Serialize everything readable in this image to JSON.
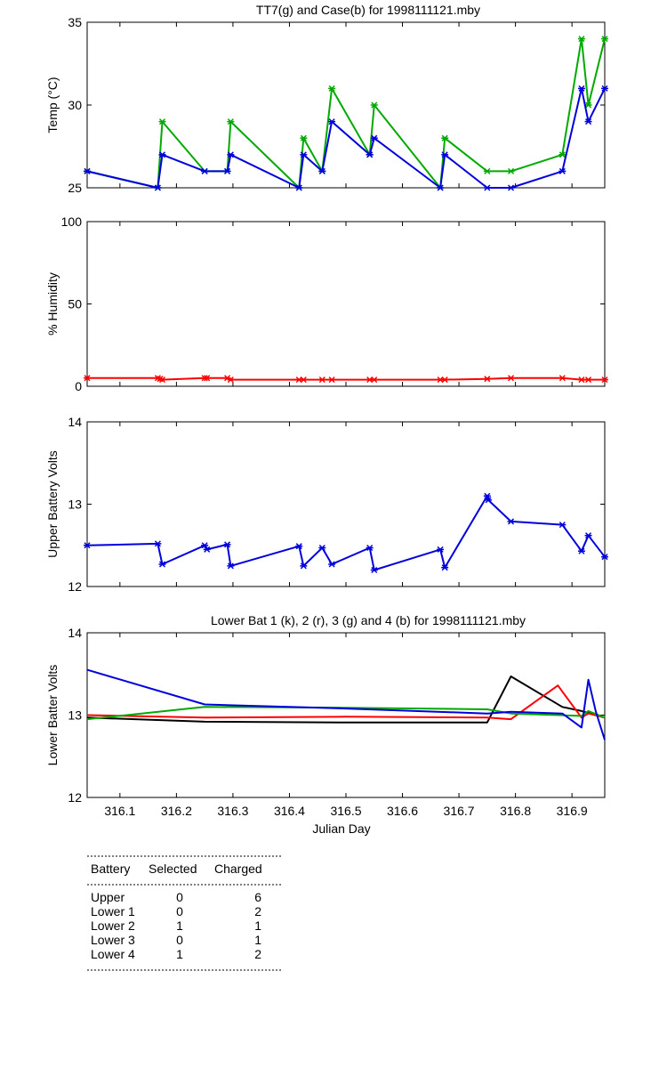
{
  "colors": {
    "k": "#000000",
    "r": "#ff0000",
    "g": "#00aa00",
    "b": "#0000dd"
  },
  "chart_data": [
    {
      "type": "line",
      "title": "TT7(g) and Case(b) for 1998111121.mby",
      "xlabel": "",
      "ylabel": "Temp  (°C)",
      "xlim": [
        316.042,
        316.958
      ],
      "ylim": [
        25,
        35
      ],
      "yticks": [
        25,
        30,
        35
      ],
      "markers": true,
      "series": [
        {
          "color": "g",
          "points": [
            [
              316.042,
              26
            ],
            [
              316.167,
              25
            ],
            [
              316.175,
              29
            ],
            [
              316.25,
              26
            ],
            [
              316.29,
              26
            ],
            [
              316.296,
              29
            ],
            [
              316.417,
              25
            ],
            [
              316.425,
              28
            ],
            [
              316.458,
              26
            ],
            [
              316.475,
              31
            ],
            [
              316.542,
              27
            ],
            [
              316.55,
              30
            ],
            [
              316.667,
              25
            ],
            [
              316.675,
              28
            ],
            [
              316.75,
              26
            ],
            [
              316.792,
              26
            ],
            [
              316.883,
              27
            ],
            [
              316.917,
              34
            ],
            [
              316.929,
              30
            ],
            [
              316.958,
              34
            ]
          ]
        },
        {
          "color": "b",
          "points": [
            [
              316.042,
              26
            ],
            [
              316.167,
              25
            ],
            [
              316.175,
              27
            ],
            [
              316.25,
              26
            ],
            [
              316.29,
              26
            ],
            [
              316.296,
              27
            ],
            [
              316.417,
              25
            ],
            [
              316.425,
              27
            ],
            [
              316.458,
              26
            ],
            [
              316.475,
              29
            ],
            [
              316.542,
              27
            ],
            [
              316.55,
              28
            ],
            [
              316.667,
              25
            ],
            [
              316.675,
              27
            ],
            [
              316.75,
              25
            ],
            [
              316.792,
              25
            ],
            [
              316.883,
              26
            ],
            [
              316.917,
              31
            ],
            [
              316.929,
              29
            ],
            [
              316.958,
              31
            ]
          ]
        }
      ]
    },
    {
      "type": "line",
      "title": "",
      "xlabel": "",
      "ylabel": "% Humidity",
      "xlim": [
        316.042,
        316.958
      ],
      "ylim": [
        0,
        100
      ],
      "yticks": [
        0,
        50,
        100
      ],
      "markers": true,
      "series": [
        {
          "color": "r",
          "points": [
            [
              316.042,
              5
            ],
            [
              316.167,
              5
            ],
            [
              316.171,
              4.5
            ],
            [
              316.175,
              4
            ],
            [
              316.25,
              5
            ],
            [
              316.254,
              5
            ],
            [
              316.29,
              5
            ],
            [
              316.296,
              4
            ],
            [
              316.417,
              4
            ],
            [
              316.425,
              4
            ],
            [
              316.458,
              4
            ],
            [
              316.475,
              4
            ],
            [
              316.542,
              4
            ],
            [
              316.55,
              4
            ],
            [
              316.667,
              4
            ],
            [
              316.675,
              4
            ],
            [
              316.75,
              4.5
            ],
            [
              316.792,
              5
            ],
            [
              316.883,
              5
            ],
            [
              316.917,
              4
            ],
            [
              316.929,
              4
            ],
            [
              316.958,
              4
            ]
          ]
        }
      ]
    },
    {
      "type": "line",
      "title": "",
      "xlabel": "",
      "ylabel": "Upper Battery Volts",
      "xlim": [
        316.042,
        316.958
      ],
      "ylim": [
        12,
        14
      ],
      "yticks": [
        12,
        13,
        14
      ],
      "markers": true,
      "series": [
        {
          "color": "b",
          "points": [
            [
              316.042,
              12.5
            ],
            [
              316.167,
              12.52
            ],
            [
              316.175,
              12.27
            ],
            [
              316.25,
              12.5
            ],
            [
              316.254,
              12.45
            ],
            [
              316.29,
              12.51
            ],
            [
              316.296,
              12.25
            ],
            [
              316.417,
              12.49
            ],
            [
              316.425,
              12.25
            ],
            [
              316.458,
              12.47
            ],
            [
              316.475,
              12.27
            ],
            [
              316.542,
              12.47
            ],
            [
              316.55,
              12.2
            ],
            [
              316.667,
              12.45
            ],
            [
              316.675,
              12.23
            ],
            [
              316.75,
              13.1
            ],
            [
              316.752,
              13.05
            ],
            [
              316.792,
              12.79
            ],
            [
              316.883,
              12.75
            ],
            [
              316.917,
              12.43
            ],
            [
              316.929,
              12.62
            ],
            [
              316.958,
              12.36
            ]
          ]
        }
      ]
    },
    {
      "type": "line",
      "title": "Lower Bat 1 (k), 2 (r), 3 (g) and 4 (b) for 1998111121.mby",
      "xlabel": "Julian Day",
      "ylabel": "Lower Batter Volts",
      "xlim": [
        316.042,
        316.958
      ],
      "ylim": [
        12,
        14
      ],
      "yticks": [
        12,
        13,
        14
      ],
      "xticks": [
        316.1,
        316.2,
        316.3,
        316.4,
        316.5,
        316.6,
        316.7,
        316.8,
        316.9
      ],
      "markers": false,
      "series": [
        {
          "color": "k",
          "points": [
            [
              316.042,
              12.97
            ],
            [
              316.25,
              12.92
            ],
            [
              316.5,
              12.91
            ],
            [
              316.75,
              12.91
            ],
            [
              316.792,
              13.47
            ],
            [
              316.883,
              13.1
            ],
            [
              316.917,
              13.05
            ],
            [
              316.958,
              12.97
            ]
          ]
        },
        {
          "color": "r",
          "points": [
            [
              316.042,
              13.0
            ],
            [
              316.25,
              12.97
            ],
            [
              316.5,
              12.98
            ],
            [
              316.75,
              12.97
            ],
            [
              316.792,
              12.95
            ],
            [
              316.875,
              13.36
            ],
            [
              316.917,
              12.97
            ],
            [
              316.929,
              13.02
            ],
            [
              316.958,
              12.97
            ]
          ]
        },
        {
          "color": "g",
          "points": [
            [
              316.042,
              12.95
            ],
            [
              316.25,
              13.1
            ],
            [
              316.5,
              13.09
            ],
            [
              316.75,
              13.07
            ],
            [
              316.792,
              13.02
            ],
            [
              316.917,
              12.99
            ],
            [
              316.929,
              13.05
            ],
            [
              316.958,
              12.97
            ]
          ]
        },
        {
          "color": "b",
          "points": [
            [
              316.042,
              13.55
            ],
            [
              316.25,
              13.13
            ],
            [
              316.5,
              13.08
            ],
            [
              316.75,
              13.02
            ],
            [
              316.792,
              13.04
            ],
            [
              316.883,
              13.02
            ],
            [
              316.917,
              12.85
            ],
            [
              316.929,
              13.43
            ],
            [
              316.942,
              13.05
            ],
            [
              316.958,
              12.7
            ]
          ]
        }
      ]
    }
  ],
  "battery_table": {
    "headers": [
      "Battery",
      "Selected",
      "Charged"
    ],
    "rows": [
      [
        "Upper",
        "0",
        "6"
      ],
      [
        "Lower 1",
        "0",
        "2"
      ],
      [
        "Lower 2",
        "1",
        "1"
      ],
      [
        "Lower 3",
        "0",
        "1"
      ],
      [
        "Lower 4",
        "1",
        "2"
      ]
    ]
  }
}
